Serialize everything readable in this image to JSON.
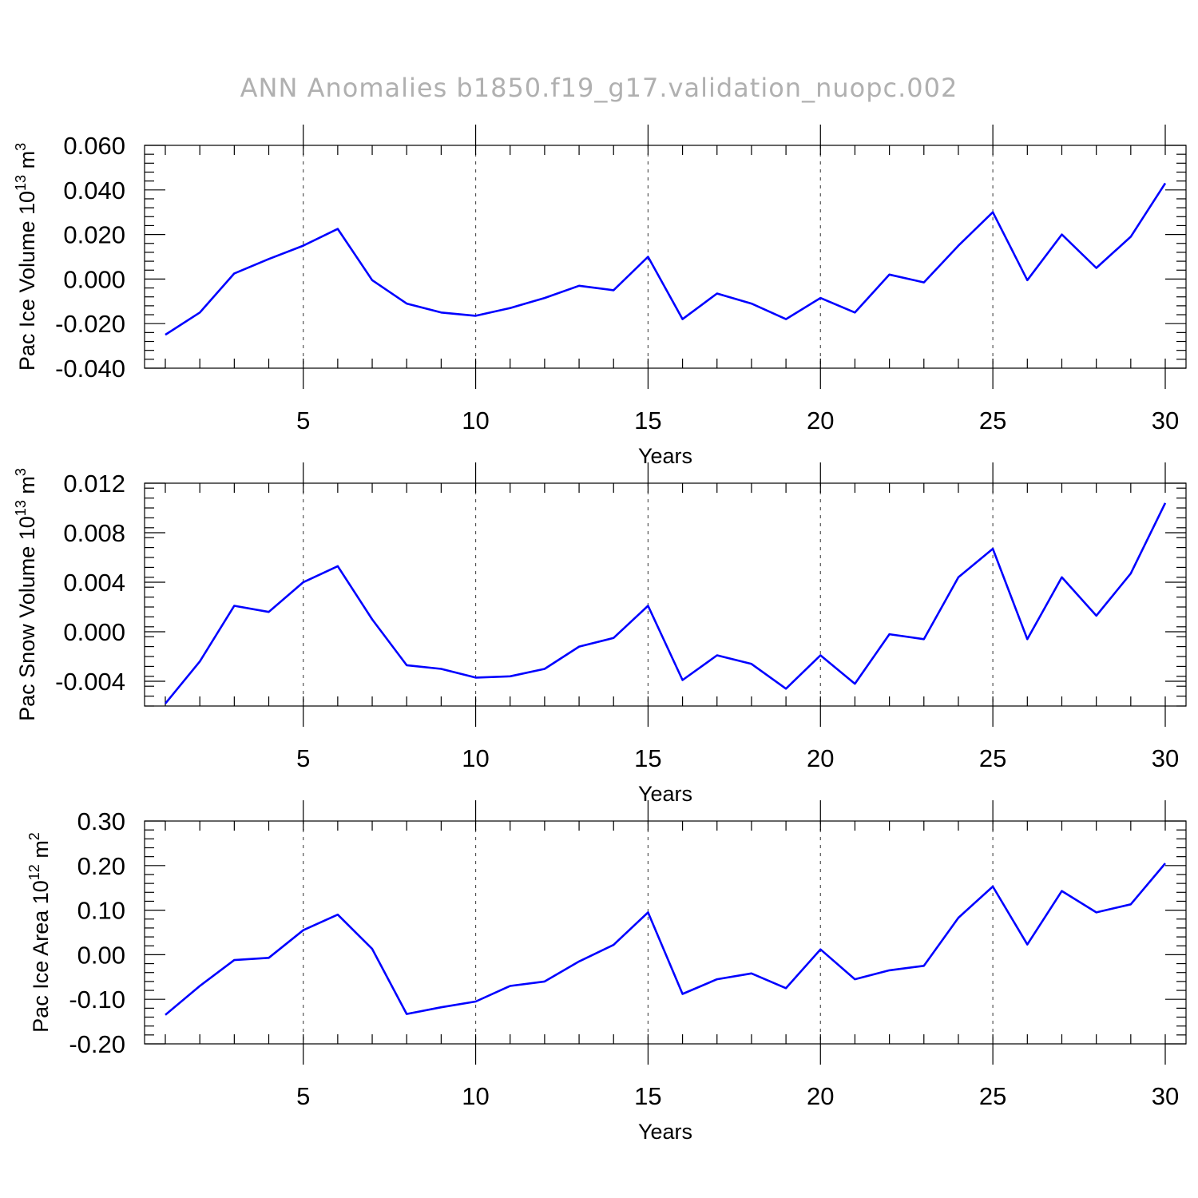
{
  "figure": {
    "title": "ANN Anomalies b1850.f19_g17.validation_nuopc.002"
  },
  "colors": {
    "series": "#0000ff",
    "title": "#b0b0b0"
  },
  "chart_data": [
    {
      "type": "line",
      "title": "",
      "xlabel": "Years",
      "ylabel_main": "Pac Ice Volume 10",
      "ylabel_sup": "13",
      "ylabel_unit": " m",
      "ylabel_unit_sup": "3",
      "xlim": [
        1,
        30
      ],
      "ylim": [
        -0.04,
        0.06
      ],
      "yticks": [
        -0.04,
        -0.02,
        0.0,
        0.02,
        0.04,
        0.06
      ],
      "ytick_labels": [
        "-0.040",
        "-0.020",
        "0.000",
        "0.020",
        "0.040",
        "0.060"
      ],
      "xticks": [
        5,
        10,
        15,
        20,
        25,
        30
      ],
      "xtick_labels": [
        "5",
        "10",
        "15",
        "20",
        "25",
        "30"
      ],
      "grid_x": [
        5,
        10,
        15,
        20,
        25
      ],
      "series": [
        {
          "name": "Pac Ice Volume",
          "x": [
            1,
            2,
            3,
            4,
            5,
            6,
            7,
            8,
            9,
            10,
            11,
            12,
            13,
            14,
            15,
            16,
            17,
            18,
            19,
            20,
            21,
            22,
            23,
            24,
            25,
            26,
            27,
            28,
            29,
            30
          ],
          "values": [
            -0.025,
            -0.015,
            0.0025,
            0.009,
            0.015,
            0.0225,
            -0.0005,
            -0.011,
            -0.015,
            -0.0165,
            -0.013,
            -0.0085,
            -0.003,
            -0.005,
            0.01,
            -0.018,
            -0.0065,
            -0.011,
            -0.018,
            -0.0085,
            -0.015,
            0.002,
            -0.0015,
            0.015,
            0.03,
            -0.0005,
            0.02,
            0.005,
            0.019,
            0.043
          ]
        }
      ]
    },
    {
      "type": "line",
      "title": "",
      "xlabel": "Years",
      "ylabel_main": "Pac Snow Volume 10",
      "ylabel_sup": "13",
      "ylabel_unit": " m",
      "ylabel_unit_sup": "3",
      "xlim": [
        1,
        30
      ],
      "ylim": [
        -0.006,
        0.012
      ],
      "yticks": [
        -0.004,
        0.0,
        0.004,
        0.008,
        0.012
      ],
      "ytick_labels": [
        "-0.004",
        "0.000",
        "0.004",
        "0.008",
        "0.012"
      ],
      "xticks": [
        5,
        10,
        15,
        20,
        25,
        30
      ],
      "xtick_labels": [
        "5",
        "10",
        "15",
        "20",
        "25",
        "30"
      ],
      "grid_x": [
        5,
        10,
        15,
        20,
        25
      ],
      "series": [
        {
          "name": "Pac Snow Volume",
          "x": [
            1,
            2,
            3,
            4,
            5,
            6,
            7,
            8,
            9,
            10,
            11,
            12,
            13,
            14,
            15,
            16,
            17,
            18,
            19,
            20,
            21,
            22,
            23,
            24,
            25,
            26,
            27,
            28,
            29,
            30
          ],
          "values": [
            -0.0058,
            -0.0024,
            0.0021,
            0.0016,
            0.004,
            0.0053,
            0.001,
            -0.0027,
            -0.003,
            -0.0037,
            -0.0036,
            -0.003,
            -0.0012,
            -0.0005,
            0.0021,
            -0.0039,
            -0.0019,
            -0.0026,
            -0.0046,
            -0.0019,
            -0.0042,
            -0.0002,
            -0.0006,
            0.0044,
            0.0067,
            -0.0006,
            0.0044,
            0.0013,
            0.0047,
            0.0104
          ]
        }
      ]
    },
    {
      "type": "line",
      "title": "",
      "xlabel": "Years",
      "ylabel_main": "Pac Ice Area 10",
      "ylabel_sup": "12",
      "ylabel_unit": " m",
      "ylabel_unit_sup": "2",
      "xlim": [
        1,
        30
      ],
      "ylim": [
        -0.2,
        0.3
      ],
      "yticks": [
        -0.2,
        -0.1,
        0.0,
        0.1,
        0.2,
        0.3
      ],
      "ytick_labels": [
        "-0.20",
        "-0.10",
        "0.00",
        "0.10",
        "0.20",
        "0.30"
      ],
      "xticks": [
        5,
        10,
        15,
        20,
        25,
        30
      ],
      "xtick_labels": [
        "5",
        "10",
        "15",
        "20",
        "25",
        "30"
      ],
      "grid_x": [
        5,
        10,
        15,
        20,
        25
      ],
      "series": [
        {
          "name": "Pac Ice Area",
          "x": [
            1,
            2,
            3,
            4,
            5,
            6,
            7,
            8,
            9,
            10,
            11,
            12,
            13,
            14,
            15,
            16,
            17,
            18,
            19,
            20,
            21,
            22,
            23,
            24,
            25,
            26,
            27,
            28,
            29,
            30
          ],
          "values": [
            -0.135,
            -0.07,
            -0.012,
            -0.007,
            0.055,
            0.09,
            0.013,
            -0.133,
            -0.118,
            -0.105,
            -0.07,
            -0.06,
            -0.015,
            0.022,
            0.095,
            -0.088,
            -0.055,
            -0.042,
            -0.075,
            0.012,
            -0.055,
            -0.035,
            -0.025,
            0.083,
            0.153,
            0.023,
            0.143,
            0.095,
            0.113,
            0.205
          ]
        }
      ]
    }
  ]
}
